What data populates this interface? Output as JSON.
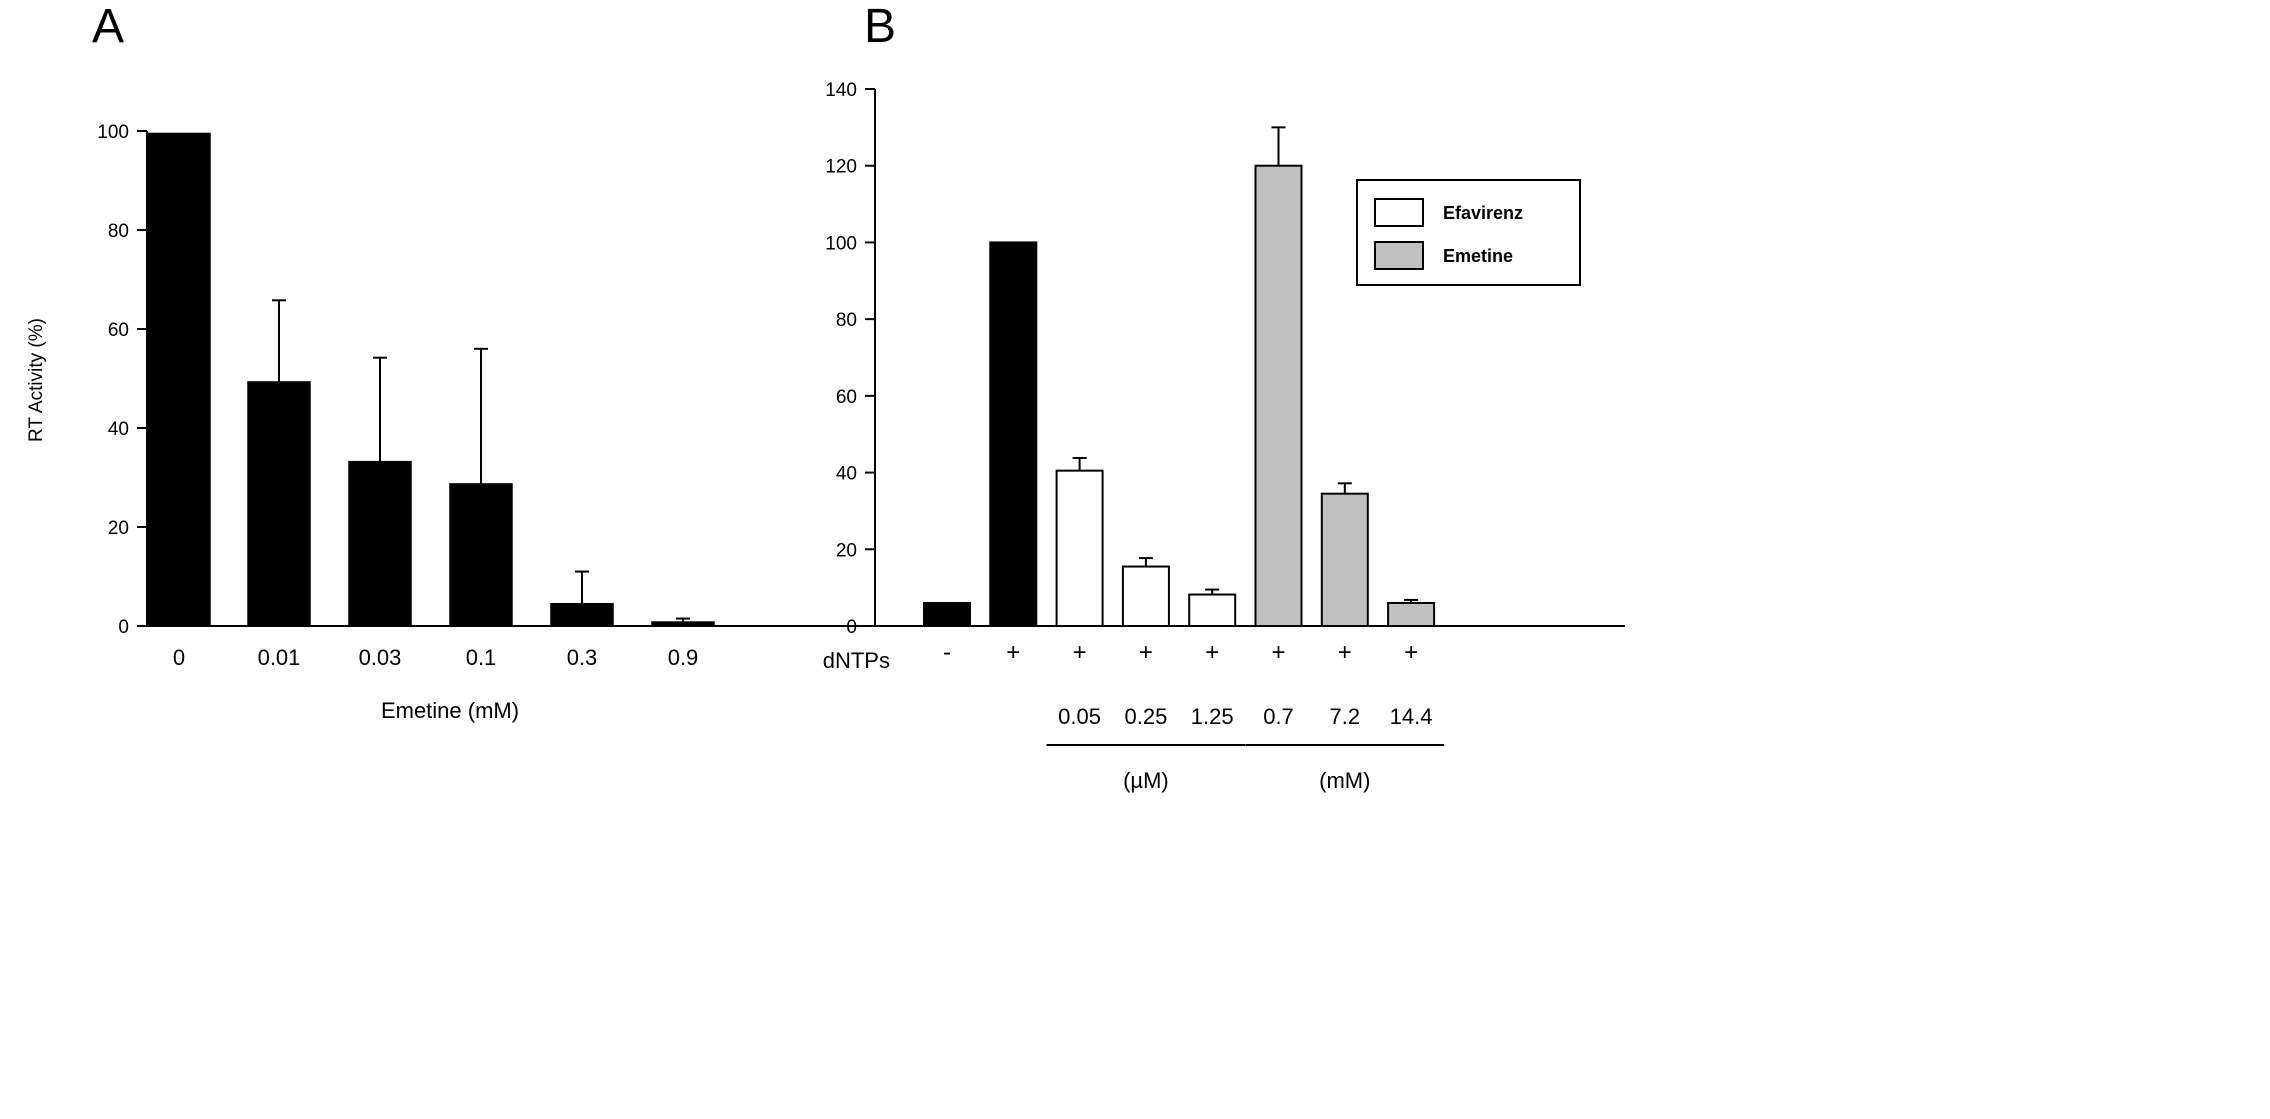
{
  "chart_data": [
    {
      "type": "bar",
      "panel_label": "A",
      "xlabel": "Emetine (mM)",
      "ylabel": "RT Activity (%)",
      "categories": [
        "0",
        "0.01",
        "0.03",
        "0.1",
        "0.3",
        "0.9"
      ],
      "values": [
        99.5,
        49.3,
        33.2,
        28.7,
        4.5,
        0.8
      ],
      "errors": [
        0,
        16.5,
        21,
        27.3,
        6.5,
        0.7
      ],
      "ylim": [
        0,
        100
      ],
      "yticks": [
        "0",
        "20",
        "40",
        "60",
        "80",
        "100"
      ],
      "bar_color": "#000000",
      "grid": false
    },
    {
      "type": "bar",
      "panel_label": "B",
      "ylabel": "",
      "ylim": [
        0,
        140
      ],
      "yticks": [
        "0",
        "20",
        "40",
        "60",
        "80",
        "100",
        "120",
        "140"
      ],
      "grid": false,
      "legend": {
        "placement": "top-right",
        "entries": [
          {
            "name": "Efavirenz",
            "color": "#ffffff"
          },
          {
            "name": "Emetine",
            "color": "#c0c0c0"
          }
        ]
      },
      "row_label": "dNTPs",
      "bars": [
        {
          "dntp": "-",
          "value": 6,
          "error": 0,
          "color": "#000000",
          "conc": ""
        },
        {
          "dntp": "+",
          "value": 100,
          "error": 0,
          "color": "#000000",
          "conc": ""
        },
        {
          "dntp": "+",
          "value": 40.5,
          "error": 3.3,
          "color": "#ffffff",
          "conc": "0.05"
        },
        {
          "dntp": "+",
          "value": 15.5,
          "error": 2.2,
          "color": "#ffffff",
          "conc": "0.25"
        },
        {
          "dntp": "+",
          "value": 8.2,
          "error": 1.3,
          "color": "#ffffff",
          "conc": "1.25"
        },
        {
          "dntp": "+",
          "value": 120,
          "error": 10,
          "color": "#c0c0c0",
          "conc": "0.7"
        },
        {
          "dntp": "+",
          "value": 34.5,
          "error": 2.7,
          "color": "#c0c0c0",
          "conc": "7.2"
        },
        {
          "dntp": "+",
          "value": 6,
          "error": 0.8,
          "color": "#c0c0c0",
          "conc": "14.4"
        }
      ],
      "groups": [
        {
          "unit": "(µM)",
          "start": 2,
          "end": 4
        },
        {
          "unit": "(mM)",
          "start": 5,
          "end": 7
        }
      ]
    }
  ]
}
